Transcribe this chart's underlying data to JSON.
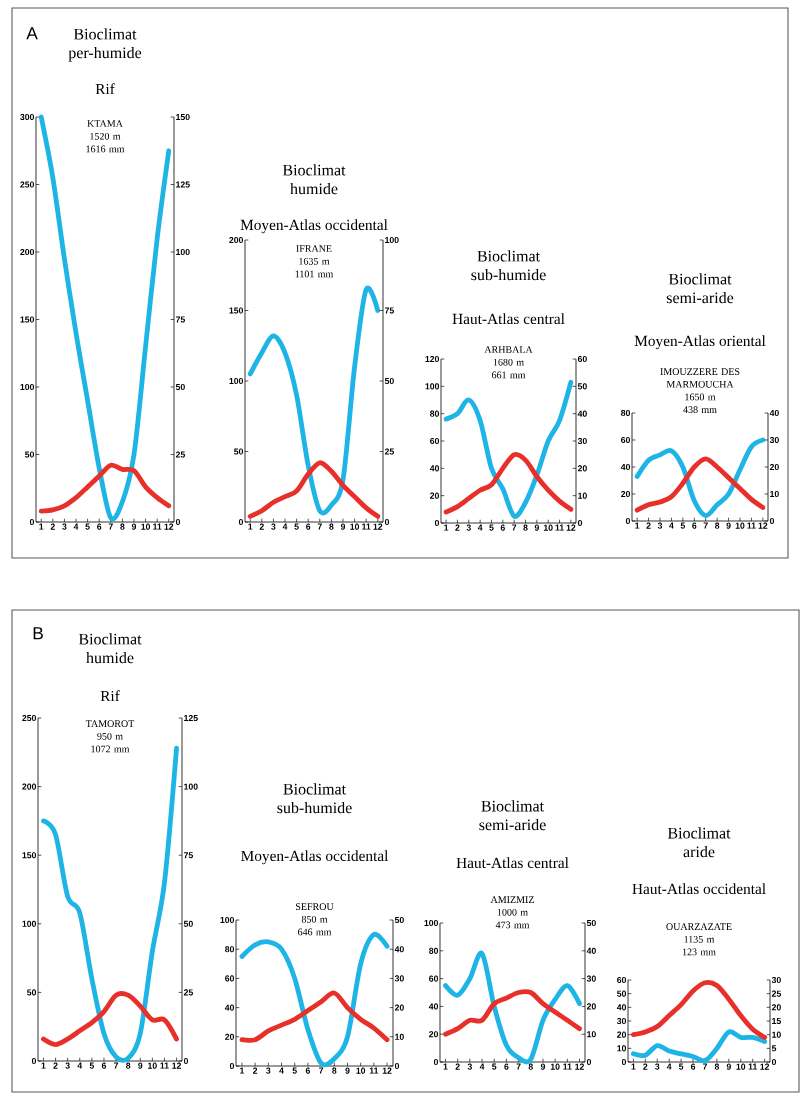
{
  "chart_data": [
    {
      "type": "line",
      "title": "Bioclimat per-humide",
      "subtitle": "Rif",
      "annotations": [
        "A",
        "KTAMA",
        "1520 m",
        "1616 mm"
      ],
      "categories": [
        "1",
        "2",
        "3",
        "4",
        "5",
        "6",
        "7",
        "8",
        "9",
        "10",
        "11",
        "12"
      ],
      "series": [
        {
          "color": "#1eb4e6",
          "values": [
            300,
            255,
            195,
            140,
            90,
            40,
            3,
            15,
            50,
            130,
            210,
            275
          ]
        },
        {
          "color": "#e8302a",
          "axis": "y2",
          "values": [
            4,
            4.5,
            6,
            9,
            13,
            17,
            21,
            19.5,
            19,
            13,
            9,
            6
          ]
        }
      ],
      "ylim": [
        0,
        300
      ],
      "yticks": [
        0,
        50,
        100,
        150,
        200,
        250,
        300
      ],
      "y2lim": [
        0,
        150
      ],
      "y2ticks": [
        0,
        25,
        50,
        75,
        100,
        125,
        150
      ]
    },
    {
      "type": "line",
      "title": "Bioclimat humide",
      "subtitle": "Moyen-Atlas occidental",
      "annotations": [
        "IFRANE",
        "1635 m",
        "1101 mm"
      ],
      "categories": [
        "1",
        "2",
        "3",
        "4",
        "5",
        "6",
        "7",
        "8",
        "9",
        "10",
        "11",
        "12"
      ],
      "series": [
        {
          "color": "#1eb4e6",
          "values": [
            105,
            120,
            132,
            120,
            90,
            40,
            8,
            12,
            30,
            110,
            165,
            150
          ]
        },
        {
          "color": "#e8302a",
          "axis": "y2",
          "values": [
            2,
            4,
            7,
            9,
            11,
            17,
            21,
            18,
            13,
            9,
            5,
            2
          ]
        }
      ],
      "ylim": [
        0,
        200
      ],
      "yticks": [
        0,
        50,
        100,
        150,
        200
      ],
      "y2lim": [
        0,
        100
      ],
      "y2ticks": [
        0,
        25,
        50,
        75,
        100
      ]
    },
    {
      "type": "line",
      "title": "Bioclimat sub-humide",
      "subtitle": "Haut-Atlas central",
      "annotations": [
        "ARHBALA",
        "1680 m",
        "661 mm"
      ],
      "categories": [
        "1",
        "2",
        "3",
        "4",
        "5",
        "6",
        "7",
        "8",
        "9",
        "10",
        "11",
        "12"
      ],
      "series": [
        {
          "color": "#1eb4e6",
          "values": [
            76,
            80,
            90,
            75,
            40,
            25,
            5,
            15,
            35,
            60,
            75,
            103
          ]
        },
        {
          "color": "#e8302a",
          "axis": "y2",
          "values": [
            4,
            6,
            9,
            12,
            14,
            20,
            25,
            23,
            17,
            12,
            8,
            5
          ]
        }
      ],
      "ylim": [
        0,
        120
      ],
      "yticks": [
        0,
        20,
        40,
        60,
        80,
        100,
        120
      ],
      "y2lim": [
        0,
        60
      ],
      "y2ticks": [
        0,
        10,
        20,
        30,
        40,
        50,
        60
      ]
    },
    {
      "type": "line",
      "title": "Bioclimat semi-aride",
      "subtitle": "Moyen-Atlas oriental",
      "annotations": [
        "IMOUZZERE DES MARMOUCHA",
        "1650 m",
        "438 mm"
      ],
      "categories": [
        "1",
        "2",
        "3",
        "4",
        "5",
        "6",
        "7",
        "8",
        "9",
        "10",
        "11",
        "12"
      ],
      "series": [
        {
          "color": "#1eb4e6",
          "values": [
            33,
            45,
            49,
            52,
            40,
            15,
            4,
            12,
            20,
            38,
            55,
            60
          ]
        },
        {
          "color": "#e8302a",
          "axis": "y2",
          "values": [
            4,
            6,
            7,
            9,
            14,
            20,
            23,
            20,
            16,
            12,
            8,
            5
          ]
        }
      ],
      "ylim": [
        0,
        80
      ],
      "yticks": [
        0,
        20,
        40,
        60,
        80
      ],
      "y2lim": [
        0,
        40
      ],
      "y2ticks": [
        0,
        10,
        20,
        30,
        40
      ]
    },
    {
      "type": "line",
      "title": "Bioclimat humide",
      "subtitle": "Rif",
      "annotations": [
        "B",
        "TAMOROT",
        "950 m",
        "1072 mm"
      ],
      "categories": [
        "1",
        "2",
        "3",
        "4",
        "5",
        "6",
        "7",
        "8",
        "9",
        "10",
        "11",
        "12"
      ],
      "series": [
        {
          "color": "#1eb4e6",
          "values": [
            175,
            165,
            120,
            108,
            60,
            20,
            3,
            2,
            20,
            80,
            130,
            228
          ]
        },
        {
          "color": "#e8302a",
          "axis": "y2",
          "values": [
            8,
            6,
            8,
            11,
            14,
            18,
            24,
            24,
            20,
            15,
            15,
            8
          ]
        }
      ],
      "ylim": [
        0,
        250
      ],
      "yticks": [
        0,
        50,
        100,
        150,
        200,
        250
      ],
      "y2lim": [
        0,
        125
      ],
      "y2ticks": [
        0,
        25,
        50,
        75,
        100,
        125
      ]
    },
    {
      "type": "line",
      "title": "Bioclimat sub-humide",
      "subtitle": "Moyen-Atlas occidental",
      "annotations": [
        "SEFROU",
        "850 m",
        "646 mm"
      ],
      "categories": [
        "1",
        "2",
        "3",
        "4",
        "5",
        "6",
        "7",
        "8",
        "9",
        "10",
        "11",
        "12"
      ],
      "series": [
        {
          "color": "#1eb4e6",
          "values": [
            75,
            83,
            85,
            80,
            60,
            25,
            2,
            5,
            20,
            70,
            90,
            82
          ]
        },
        {
          "color": "#e8302a",
          "axis": "y2",
          "values": [
            9,
            9,
            12,
            14,
            16,
            19,
            22,
            25,
            20,
            16,
            13,
            9
          ]
        }
      ],
      "ylim": [
        0,
        100
      ],
      "yticks": [
        0,
        20,
        40,
        60,
        80,
        100
      ],
      "y2lim": [
        0,
        50
      ],
      "y2ticks": [
        0,
        10,
        20,
        30,
        40,
        50
      ]
    },
    {
      "type": "line",
      "title": "Bioclimat semi-aride",
      "subtitle": "Haut-Atlas central",
      "annotations": [
        "AMIZMIZ",
        "1000 m",
        "473 mm"
      ],
      "categories": [
        "1",
        "2",
        "3",
        "4",
        "5",
        "6",
        "7",
        "8",
        "9",
        "10",
        "11",
        "12"
      ],
      "series": [
        {
          "color": "#1eb4e6",
          "values": [
            55,
            48,
            60,
            78,
            40,
            12,
            3,
            2,
            30,
            45,
            55,
            42
          ]
        },
        {
          "color": "#e8302a",
          "axis": "y2",
          "values": [
            10,
            12,
            15,
            15,
            21,
            23,
            25,
            25,
            21,
            18,
            15,
            12
          ]
        }
      ],
      "ylim": [
        0,
        100
      ],
      "yticks": [
        0,
        20,
        40,
        60,
        80,
        100
      ],
      "y2lim": [
        0,
        50
      ],
      "y2ticks": [
        0,
        10,
        20,
        30,
        40,
        50
      ]
    },
    {
      "type": "line",
      "title": "Bioclimat aride",
      "subtitle": "Haut-Atlas occidental",
      "annotations": [
        "OUARZAZATE",
        "1135 m",
        "123 mm"
      ],
      "categories": [
        "1",
        "2",
        "3",
        "4",
        "5",
        "6",
        "7",
        "8",
        "9",
        "10",
        "11",
        "12"
      ],
      "series": [
        {
          "color": "#1eb4e6",
          "values": [
            6,
            5,
            12,
            8,
            6,
            4,
            1,
            10,
            22,
            18,
            18,
            15
          ]
        },
        {
          "color": "#e8302a",
          "axis": "y2",
          "values": [
            10,
            11,
            13,
            17,
            21,
            26,
            29,
            28,
            23,
            17,
            12,
            9
          ]
        }
      ],
      "ylim": [
        0,
        60
      ],
      "yticks": [
        0,
        10,
        20,
        30,
        40,
        50,
        60
      ],
      "y2lim": [
        0,
        30
      ],
      "y2ticks": [
        0,
        5,
        10,
        15,
        20,
        25,
        30
      ]
    }
  ]
}
